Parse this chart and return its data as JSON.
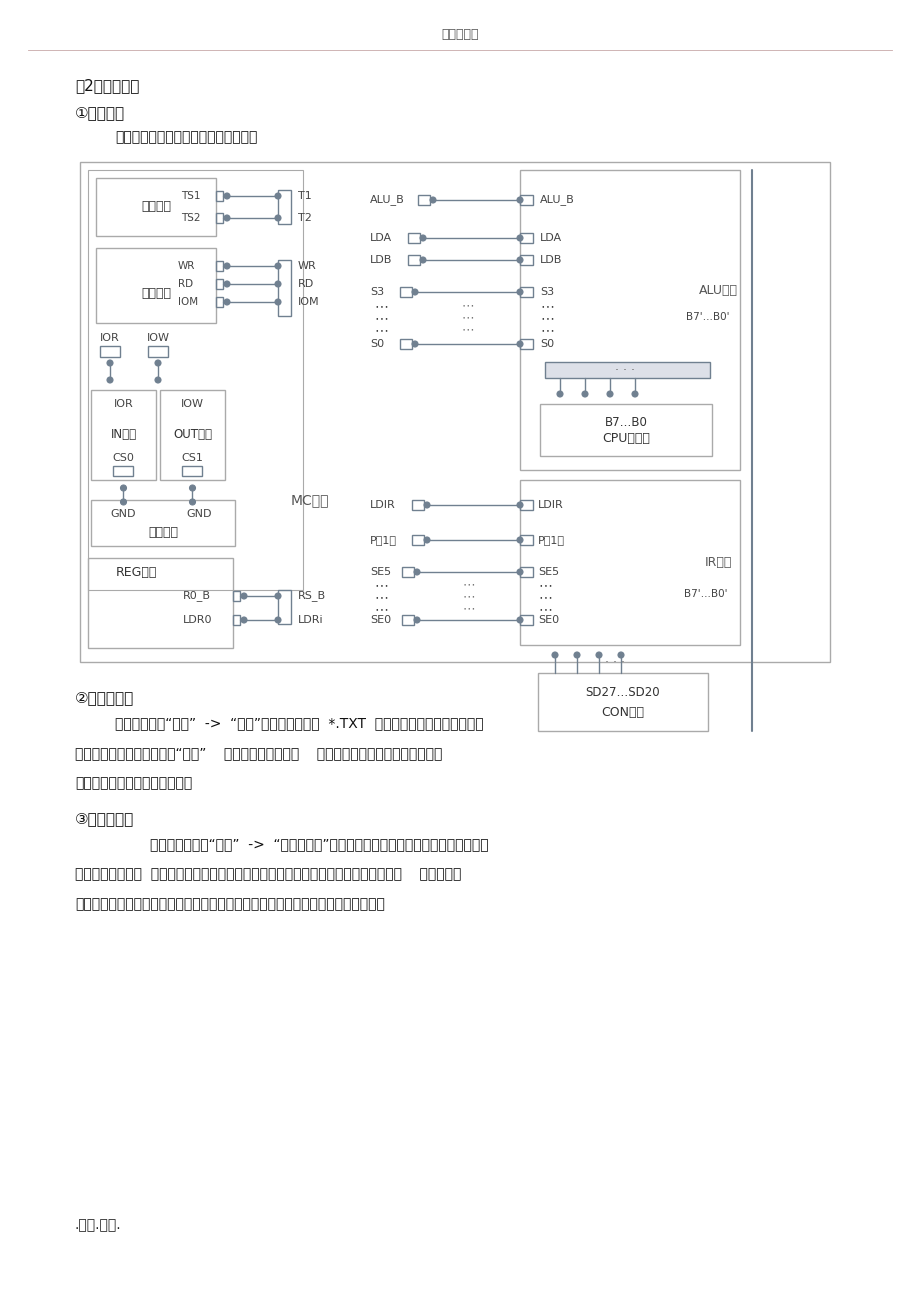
{
  "header_text": "下载可编辑",
  "header_line_color": "#c0a0a0",
  "bg_color": "#ffffff",
  "title1": "（2）主要步骤",
  "section1": "①实验接线",
  "section1_sub": "按下图连线方式完成实验筱接线部分。",
  "section2": "②写入微程序",
  "section2_line1": "用联机软件的“转储”  ->  “装载”功能将该格式（  *.TXT  ）文件装载入实验系统。装入",
  "section2_line2": "过程中，在软件的输出区的“结果”    栏会显示装载信息，    如当前正在装载的是机器指令还是",
  "section2_line3": "微指令，还剩多少条指令令等。",
  "section3": "③校验微程序",
  "section3_line1": "        选择联机软件的“转储”  ->  “刷新指令区”可以读出下位机所有的机器指令和微指令，",
  "section3_line2": "并在指令区显示。  检查微控器相应地址单元的数据是否和下表中的十六进制数据相同，    如果不同，",
  "section3_line3": "则说明写入操作失败，应重新写入，可以通过联机软件单独修改某个单元的微指令。",
  "footer_text": ".专业.整理.",
  "diagram_line_color": "#708090",
  "box_color": "#aaaaaa"
}
